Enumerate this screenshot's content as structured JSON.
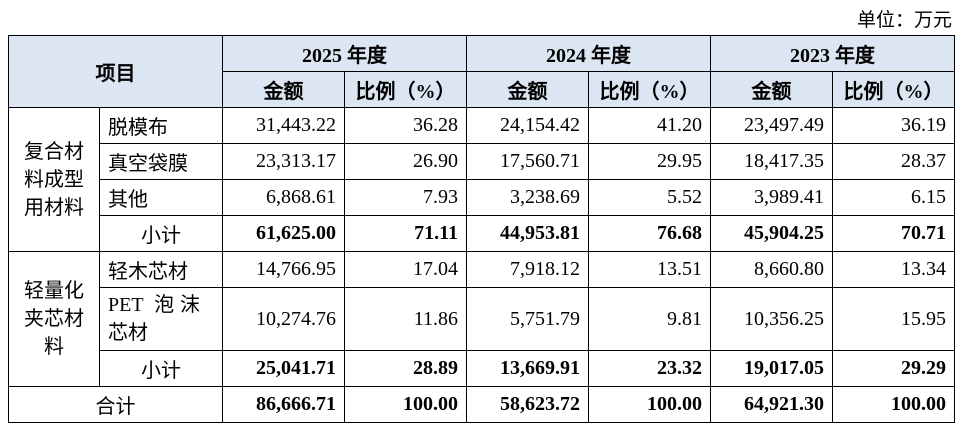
{
  "unit": "单位：万元",
  "header": {
    "item": "项目",
    "years": [
      "2025 年度",
      "2024 年度",
      "2023 年度"
    ],
    "amount": "金额",
    "ratio": "比例（%）"
  },
  "groups": [
    {
      "label": "复合材料成型用材料",
      "rows": [
        {
          "name": "脱模布",
          "cells": [
            "31,443.22",
            "36.28",
            "24,154.42",
            "41.20",
            "23,497.49",
            "36.19"
          ]
        },
        {
          "name": "真空袋膜",
          "cells": [
            "23,313.17",
            "26.90",
            "17,560.71",
            "29.95",
            "18,417.35",
            "28.37"
          ]
        },
        {
          "name": "其他",
          "cells": [
            "6,868.61",
            "7.93",
            "3,238.69",
            "5.52",
            "3,989.41",
            "6.15"
          ]
        },
        {
          "name": "小计",
          "cells": [
            "61,625.00",
            "71.11",
            "44,953.81",
            "76.68",
            "45,904.25",
            "70.71"
          ]
        }
      ]
    },
    {
      "label": "轻量化夹芯材料",
      "rows": [
        {
          "name": "轻木芯材",
          "cells": [
            "14,766.95",
            "17.04",
            "7,918.12",
            "13.51",
            "8,660.80",
            "13.34"
          ]
        },
        {
          "name": "PET 泡沫芯材",
          "cells": [
            "10,274.76",
            "11.86",
            "5,751.79",
            "9.81",
            "10,356.25",
            "15.95"
          ]
        },
        {
          "name": "小计",
          "cells": [
            "25,041.71",
            "28.89",
            "13,669.91",
            "23.32",
            "19,017.05",
            "29.29"
          ]
        }
      ]
    }
  ],
  "total": {
    "name": "合计",
    "cells": [
      "86,666.71",
      "100.00",
      "58,623.72",
      "100.00",
      "64,921.30",
      "100.00"
    ]
  }
}
